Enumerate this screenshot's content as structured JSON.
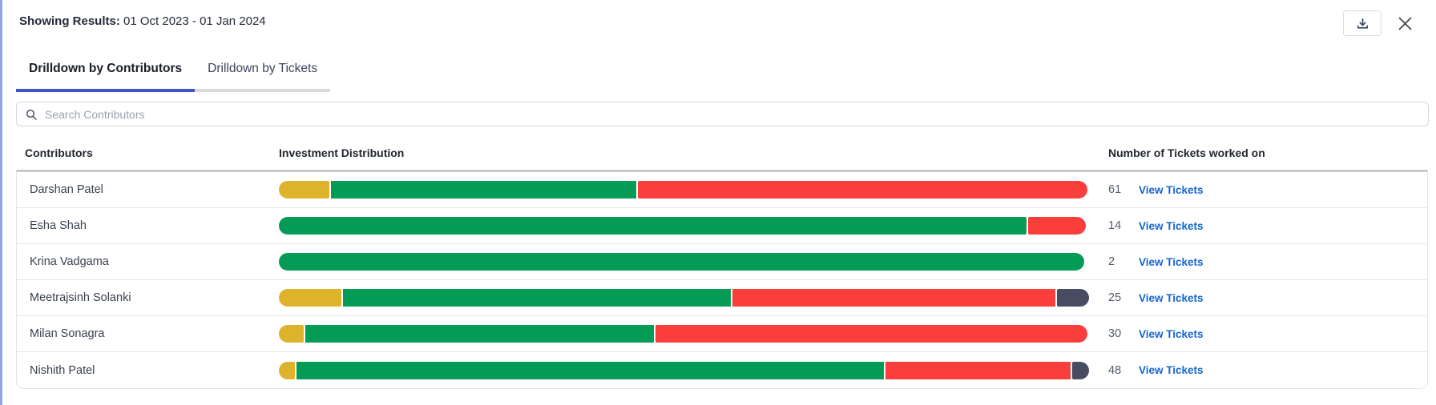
{
  "header": {
    "results_label": "Showing Results:",
    "date_range": "01 Oct 2023 - 01 Jan 2024"
  },
  "actions": {
    "download_icon": "download-tray",
    "close_icon": "x-mark"
  },
  "tabs": [
    {
      "label": "Drilldown by Contributors",
      "active": true
    },
    {
      "label": "Drilldown by Tickets",
      "active": false
    }
  ],
  "search": {
    "placeholder": "Search Contributors",
    "icon": "magnifier"
  },
  "table": {
    "columns": {
      "contributors": "Contributors",
      "distribution": "Investment Distribution",
      "tickets": "Number of Tickets worked on"
    },
    "link_label": "View Tickets",
    "rows": [
      {
        "name": "Darshan Patel",
        "tickets": "61",
        "segments": [
          {
            "type": "yellow",
            "pct": 6.3
          },
          {
            "type": "green",
            "pct": 37.9
          },
          {
            "type": "red",
            "pct": 55.8
          }
        ]
      },
      {
        "name": "Esha Shah",
        "tickets": "14",
        "segments": [
          {
            "type": "green",
            "pct": 92.8
          },
          {
            "type": "red",
            "pct": 7.2
          }
        ]
      },
      {
        "name": "Krina Vadgama",
        "tickets": "2",
        "segments": [
          {
            "type": "green",
            "pct": 100
          }
        ]
      },
      {
        "name": "Meetrajsinh Solanki",
        "tickets": "25",
        "segments": [
          {
            "type": "yellow",
            "pct": 7.8
          },
          {
            "type": "green",
            "pct": 48.1
          },
          {
            "type": "red",
            "pct": 40.1
          },
          {
            "type": "slate",
            "pct": 4.0
          }
        ]
      },
      {
        "name": "Milan Sonagra",
        "tickets": "30",
        "segments": [
          {
            "type": "yellow",
            "pct": 3.1
          },
          {
            "type": "green",
            "pct": 43.3
          },
          {
            "type": "red",
            "pct": 53.6
          }
        ]
      },
      {
        "name": "Nishith Patel",
        "tickets": "48",
        "segments": [
          {
            "type": "yellow",
            "pct": 2.0
          },
          {
            "type": "green",
            "pct": 72.9
          },
          {
            "type": "red",
            "pct": 23.0
          },
          {
            "type": "slate",
            "pct": 2.1
          }
        ]
      }
    ]
  },
  "colors": {
    "yellow": "#DDB32C",
    "green": "#049B57",
    "red": "#FA3E3C",
    "slate": "#474C63",
    "active_tab_underline": "#4254C5",
    "inactive_tab_underline": "#D9D9D9",
    "link": "#1566D2",
    "left_edge_border": "#92A4E4"
  }
}
